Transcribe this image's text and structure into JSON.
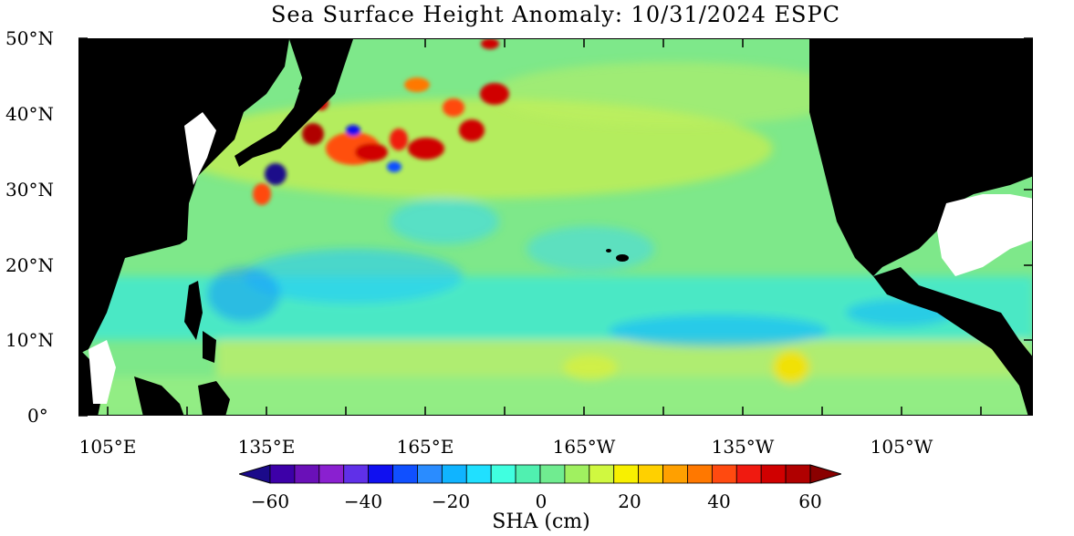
{
  "title": "Sea Surface Height Anomaly: 10/31/2024 ESPC",
  "y_axis": {
    "labels": [
      "50°N",
      "40°N",
      "30°N",
      "20°N",
      "10°N",
      "0°"
    ]
  },
  "x_axis": {
    "labels": [
      "105°E",
      "135°E",
      "165°E",
      "165°W",
      "135°W",
      "105°W"
    ]
  },
  "colorbar": {
    "title": "SHA (cm)",
    "tick_labels": [
      "−60",
      "−40",
      "−20",
      "0",
      "20",
      "40",
      "60"
    ],
    "min": -60,
    "max": 60,
    "step": 5,
    "colors": [
      "#1b0a8a",
      "#3d00a8",
      "#6a10b8",
      "#8a20d0",
      "#6030e8",
      "#1010f0",
      "#1050ff",
      "#2a8cff",
      "#10b4ff",
      "#20e0ff",
      "#40ffe0",
      "#50f0b0",
      "#70ec90",
      "#a0f060",
      "#d0f840",
      "#f8f000",
      "#ffd000",
      "#ffa000",
      "#ff7800",
      "#ff4a10",
      "#f01a10",
      "#d00000",
      "#b00000",
      "#8a0000"
    ]
  },
  "map_colors": {
    "land": "#000000",
    "ocean_base": "#7ee88a",
    "masked": "#ffffff"
  }
}
